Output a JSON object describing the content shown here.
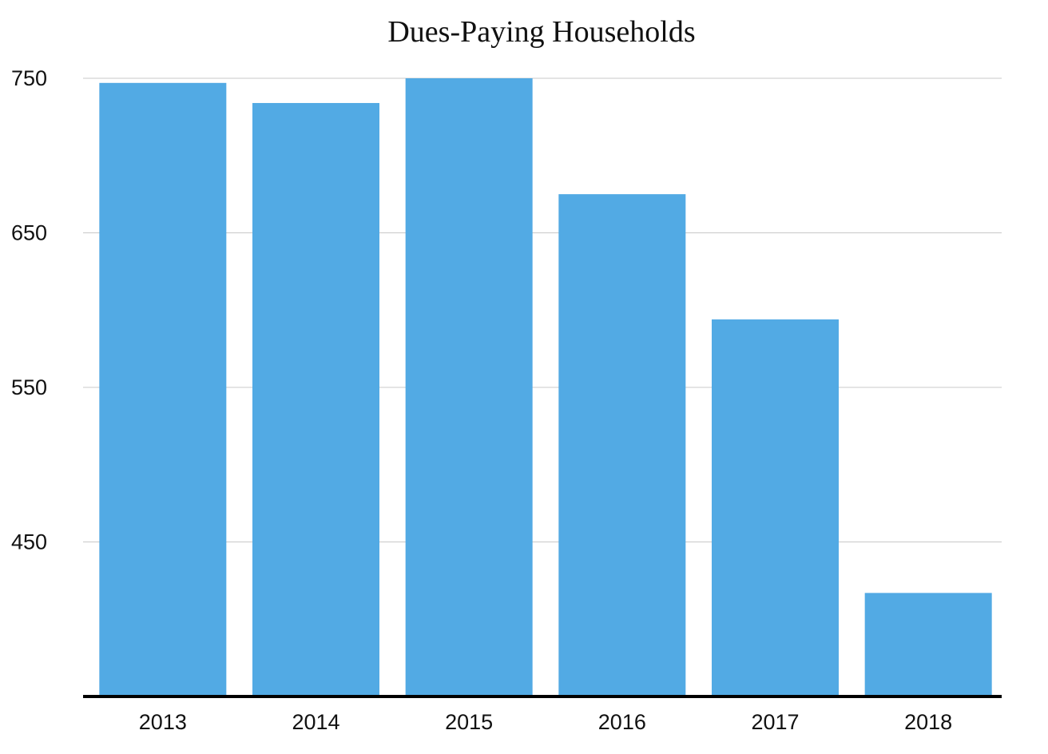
{
  "chart_data": {
    "type": "bar",
    "title": "Dues-Paying Households",
    "xlabel": "",
    "ylabel": "",
    "categories": [
      "2013",
      "2014",
      "2015",
      "2016",
      "2017",
      "2018"
    ],
    "values": [
      747,
      734,
      750,
      675,
      594,
      417
    ],
    "ylim": [
      350,
      750
    ],
    "yticks": [
      450,
      550,
      650,
      750
    ],
    "grid": true,
    "legend": "none",
    "bar_color": "#52aae4"
  }
}
